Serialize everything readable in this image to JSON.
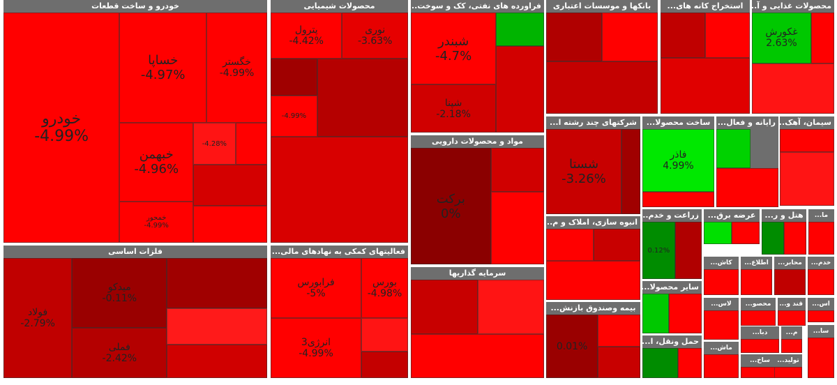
{
  "chart_data": {
    "type": "treemap",
    "title": "",
    "color_scale": {
      "negative": "#ff0000",
      "neutral": "#8b0000",
      "positive": "#00ff00"
    },
    "sectors": [
      {
        "name": "خودرو و ساخت قطعات",
        "tiles": [
          {
            "name": "خودرو",
            "change": "-4.99%"
          },
          {
            "name": "خساپا",
            "change": "-4.97%"
          },
          {
            "name": "خگستر",
            "change": "-4.99%"
          },
          {
            "name": "خبهمن",
            "change": "-4.96%"
          },
          {
            "name": "خمحور",
            "change": "-4.99%"
          },
          {
            "name": "",
            "change": "-4.28%"
          },
          {
            "name": "",
            "change": ""
          },
          {
            "name": "",
            "change": ""
          },
          {
            "name": "",
            "change": ""
          }
        ]
      },
      {
        "name": "فلزات اساسی",
        "tiles": [
          {
            "name": "فولاد",
            "change": "-2.79%"
          },
          {
            "name": "میدکو",
            "change": "-0.11%"
          },
          {
            "name": "فملی",
            "change": "-2.42%"
          },
          {
            "name": "",
            "change": ""
          },
          {
            "name": "",
            "change": ""
          },
          {
            "name": "",
            "change": ""
          }
        ]
      },
      {
        "name": "محصولات شیمیایی",
        "tiles": [
          {
            "name": "پترول",
            "change": "-4.42%"
          },
          {
            "name": "نوری",
            "change": "-3.63%"
          },
          {
            "name": "",
            "change": ""
          },
          {
            "name": "",
            "change": "-4.99%"
          },
          {
            "name": "",
            "change": ""
          },
          {
            "name": "",
            "change": ""
          }
        ]
      },
      {
        "name": "فعالیتهای کمکی به نهادهای مالی...",
        "tiles": [
          {
            "name": "فرابورس",
            "change": "-5%"
          },
          {
            "name": "بورس",
            "change": "-4.98%"
          },
          {
            "name": "انرژی3",
            "change": "-4.99%"
          },
          {
            "name": "",
            "change": ""
          },
          {
            "name": "",
            "change": ""
          }
        ]
      },
      {
        "name": "فراورده های نفتی، کک و سوخت...",
        "tiles": [
          {
            "name": "شبندر",
            "change": "-4.7%"
          },
          {
            "name": "شپنا",
            "change": "-2.18%"
          },
          {
            "name": "",
            "change": ""
          },
          {
            "name": "",
            "change": ""
          }
        ]
      },
      {
        "name": "مواد و محصولات دارویی",
        "tiles": [
          {
            "name": "برکت",
            "change": "0%"
          },
          {
            "name": "",
            "change": ""
          },
          {
            "name": "",
            "change": ""
          }
        ]
      },
      {
        "name": "سرمایه گذاریها",
        "tiles": [
          {
            "name": "",
            "change": ""
          },
          {
            "name": "",
            "change": ""
          },
          {
            "name": "",
            "change": ""
          }
        ]
      },
      {
        "name": "بانکها و موسسات اعتباری",
        "tiles": [
          {
            "name": "",
            "change": ""
          },
          {
            "name": "",
            "change": ""
          },
          {
            "name": "",
            "change": ""
          }
        ]
      },
      {
        "name": "استخراج کانه های...",
        "tiles": [
          {
            "name": "",
            "change": ""
          },
          {
            "name": "",
            "change": ""
          },
          {
            "name": "",
            "change": ""
          }
        ]
      },
      {
        "name": "محصولات غذایی و آ...",
        "tiles": [
          {
            "name": "غکورش",
            "change": "2.63%"
          },
          {
            "name": "",
            "change": ""
          },
          {
            "name": "",
            "change": ""
          }
        ]
      },
      {
        "name": "شرکتهای چند رشته ا...",
        "tiles": [
          {
            "name": "شستا",
            "change": "-3.26%"
          },
          {
            "name": "",
            "change": ""
          }
        ]
      },
      {
        "name": "ساخت محصولا...",
        "tiles": [
          {
            "name": "فاذر",
            "change": "4.99%"
          },
          {
            "name": "",
            "change": ""
          }
        ]
      },
      {
        "name": "رایانه و فعال...",
        "tiles": [
          {
            "name": "",
            "change": ""
          },
          {
            "name": "",
            "change": ""
          }
        ]
      },
      {
        "name": "سیمان، آهک...",
        "tiles": [
          {
            "name": "",
            "change": ""
          },
          {
            "name": "",
            "change": ""
          }
        ]
      },
      {
        "name": "انبوه سازی، املاک و م...",
        "tiles": [
          {
            "name": "",
            "change": ""
          },
          {
            "name": "",
            "change": ""
          },
          {
            "name": "",
            "change": ""
          }
        ]
      },
      {
        "name": "زراعت و خدم...",
        "tiles": [
          {
            "name": "",
            "change": "0.12%"
          },
          {
            "name": "",
            "change": ""
          }
        ]
      },
      {
        "name": "عرضه برق...",
        "tiles": [
          {
            "name": "",
            "change": ""
          },
          {
            "name": "",
            "change": ""
          }
        ]
      },
      {
        "name": "هتل و ر...",
        "tiles": [
          {
            "name": "",
            "change": ""
          },
          {
            "name": "",
            "change": ""
          }
        ]
      },
      {
        "name": "ما...",
        "tiles": [
          {
            "name": "",
            "change": ""
          }
        ]
      },
      {
        "name": "بیمه وصندوق بازنش...",
        "tiles": [
          {
            "name": "",
            "change": "0.01%"
          },
          {
            "name": "",
            "change": ""
          },
          {
            "name": "",
            "change": ""
          }
        ]
      },
      {
        "name": "سایر محصولا...",
        "tiles": [
          {
            "name": "",
            "change": ""
          },
          {
            "name": "",
            "change": ""
          }
        ]
      },
      {
        "name": "حمل ونقل، ا...",
        "tiles": [
          {
            "name": "",
            "change": ""
          },
          {
            "name": "",
            "change": ""
          }
        ]
      },
      {
        "name": "کاش...",
        "tiles": [
          {
            "name": "",
            "change": ""
          }
        ]
      },
      {
        "name": "اطلاع...",
        "tiles": [
          {
            "name": "",
            "change": ""
          }
        ]
      },
      {
        "name": "محابر...",
        "tiles": [
          {
            "name": "",
            "change": ""
          }
        ]
      },
      {
        "name": "خدم...",
        "tiles": [
          {
            "name": "",
            "change": ""
          }
        ]
      },
      {
        "name": "لاس...",
        "tiles": [
          {
            "name": "",
            "change": ""
          }
        ]
      },
      {
        "name": "محصو...",
        "tiles": [
          {
            "name": "",
            "change": ""
          }
        ]
      },
      {
        "name": "قند و...",
        "tiles": [
          {
            "name": "",
            "change": ""
          }
        ]
      },
      {
        "name": "اس...",
        "tiles": [
          {
            "name": "",
            "change": ""
          }
        ]
      },
      {
        "name": "دبا...",
        "tiles": [
          {
            "name": "",
            "change": ""
          }
        ]
      },
      {
        "name": "م...",
        "tiles": [
          {
            "name": "",
            "change": ""
          }
        ]
      },
      {
        "name": "ساخ...",
        "tiles": [
          {
            "name": "",
            "change": ""
          }
        ]
      },
      {
        "name": "ماش...",
        "tiles": [
          {
            "name": "",
            "change": ""
          }
        ]
      },
      {
        "name": "تولید...",
        "tiles": [
          {
            "name": "",
            "change": ""
          }
        ]
      },
      {
        "name": "سا...",
        "tiles": [
          {
            "name": "",
            "change": ""
          }
        ]
      }
    ]
  }
}
